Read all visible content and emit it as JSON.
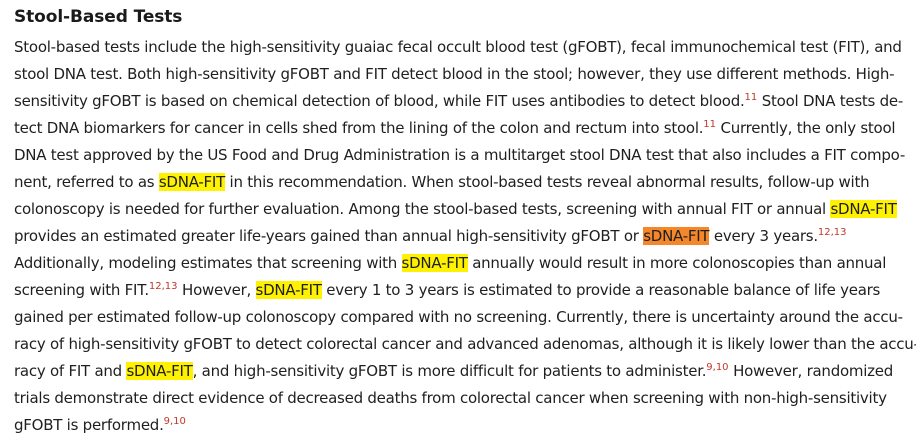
{
  "heading": "Stool-Based Tests",
  "lines": [
    [
      {
        "t": "Stool-based tests include the high-sensitivity guaiac fecal occult blood test (gFOBT), fecal immunochemical test (FIT), and"
      }
    ],
    [
      {
        "t": "stool DNA test. Both high-sensitivity gFOBT and FIT detect blood in the stool; however, they use different methods. High-"
      }
    ],
    [
      {
        "t": "sensitivity gFOBT is based on chemical detection of blood, while FIT uses antibodies to detect blood."
      },
      {
        "t": "11",
        "s": "ref"
      },
      {
        "t": " Stool DNA tests de-"
      }
    ],
    [
      {
        "t": "tect DNA biomarkers for cancer in cells shed from the lining of the colon and rectum into stool."
      },
      {
        "t": "11",
        "s": "ref"
      },
      {
        "t": " Currently, the only stool"
      }
    ],
    [
      {
        "t": "DNA test approved by the US Food and Drug Administration is a multitarget stool DNA test that also includes a FIT compo-"
      }
    ],
    [
      {
        "t": "nent, referred to as "
      },
      {
        "t": "sDNA-FIT",
        "s": "hl-yellow"
      },
      {
        "t": " in this recommendation. When stool-based tests reveal abnormal results, follow-up with"
      }
    ],
    [
      {
        "t": "colonoscopy is needed for further evaluation. Among the stool-based tests, screening with annual FIT or annual "
      },
      {
        "t": "sDNA-FIT",
        "s": "hl-yellow"
      }
    ],
    [
      {
        "t": "provides an estimated greater life-years gained than annual high-sensitivity gFOBT or "
      },
      {
        "t": "sDNA-FIT",
        "s": "hl-orange"
      },
      {
        "t": " every 3 years."
      },
      {
        "t": "12,13",
        "s": "ref"
      }
    ],
    [
      {
        "t": "Additionally, modeling estimates that screening with "
      },
      {
        "t": "sDNA-FIT",
        "s": "hl-yellow"
      },
      {
        "t": " annually would result in more colonoscopies than annual"
      }
    ],
    [
      {
        "t": "screening with FIT."
      },
      {
        "t": "12,13",
        "s": "ref"
      },
      {
        "t": " However, "
      },
      {
        "t": "sDNA-FIT",
        "s": "hl-yellow"
      },
      {
        "t": " every 1 to 3 years is estimated to provide a reasonable balance of life years"
      }
    ],
    [
      {
        "t": "gained per estimated follow-up colonoscopy compared with no screening. Currently, there is uncertainty around the accu-"
      }
    ],
    [
      {
        "t": "racy of high-sensitivity gFOBT to detect colorectal cancer and advanced adenomas, although it is likely lower than the accu-"
      }
    ],
    [
      {
        "t": "racy of FIT and "
      },
      {
        "t": "sDNA-FIT",
        "s": "hl-yellow"
      },
      {
        "t": ", and high-sensitivity gFOBT is more difficult for patients to administer."
      },
      {
        "t": "9,10",
        "s": "ref"
      },
      {
        "t": " However, randomized"
      }
    ],
    [
      {
        "t": "trials demonstrate direct evidence of decreased deaths from colorectal cancer when screening with non-high-sensitivity"
      }
    ],
    [
      {
        "t": "gFOBT is performed."
      },
      {
        "t": "9,10",
        "s": "ref"
      }
    ]
  ],
  "colors": {
    "text": "#1f1f1f",
    "highlight_yellow": "#fff200",
    "highlight_orange": "#f5872b",
    "reference": "#c0392b"
  }
}
